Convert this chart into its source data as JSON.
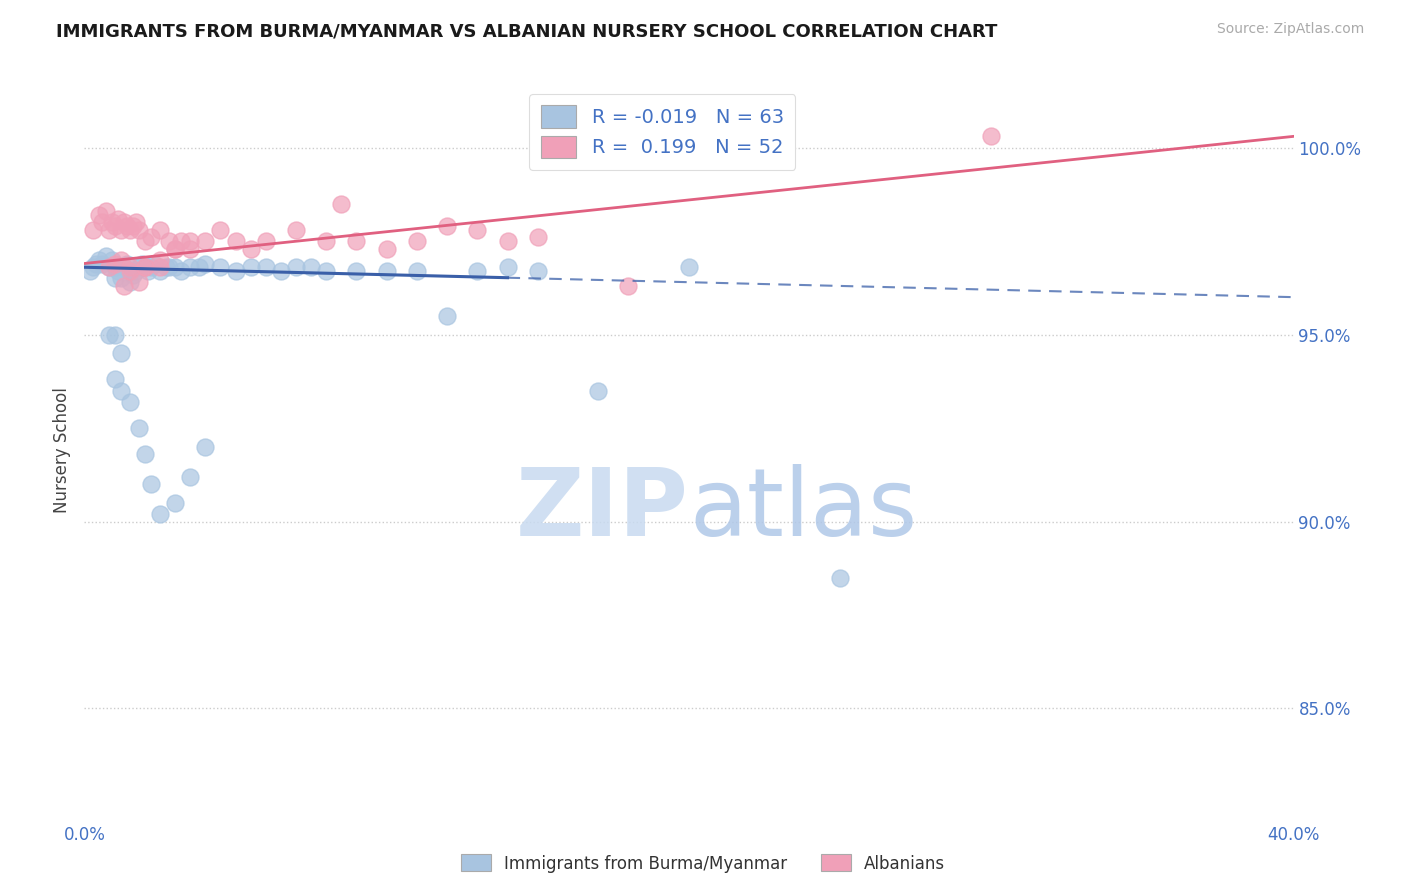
{
  "title": "IMMIGRANTS FROM BURMA/MYANMAR VS ALBANIAN NURSERY SCHOOL CORRELATION CHART",
  "source": "Source: ZipAtlas.com",
  "ylabel": "Nursery School",
  "xlim": [
    0.0,
    40.0
  ],
  "ylim": [
    82.0,
    101.8
  ],
  "yticks": [
    85.0,
    90.0,
    95.0,
    100.0
  ],
  "xticks": [
    0.0,
    5.0,
    10.0,
    15.0,
    20.0,
    25.0,
    30.0,
    35.0,
    40.0
  ],
  "blue_label": "Immigrants from Burma/Myanmar",
  "pink_label": "Albanians",
  "blue_R": -0.019,
  "blue_N": 63,
  "pink_R": 0.199,
  "pink_N": 52,
  "blue_color": "#a8c4e0",
  "pink_color": "#f0a0b8",
  "blue_line_color": "#3a5fa8",
  "pink_line_color": "#e06080",
  "background_color": "#ffffff",
  "title_color": "#1a1a1a",
  "tick_label_color": "#4472c4",
  "blue_line_intercept": 96.8,
  "blue_line_slope": -0.02,
  "pink_line_intercept": 96.9,
  "pink_line_slope": 0.085,
  "blue_solid_end": 14.0,
  "blue_scatter_x": [
    0.2,
    0.3,
    0.4,
    0.5,
    0.6,
    0.7,
    0.8,
    0.9,
    1.0,
    1.0,
    1.1,
    1.2,
    1.3,
    1.4,
    1.5,
    1.5,
    1.6,
    1.7,
    1.8,
    1.9,
    2.0,
    2.1,
    2.2,
    2.3,
    2.5,
    2.7,
    2.8,
    3.0,
    3.2,
    3.5,
    3.8,
    4.0,
    4.5,
    5.0,
    5.5,
    6.0,
    6.5,
    7.0,
    7.5,
    8.0,
    9.0,
    10.0,
    11.0,
    12.0,
    13.0,
    14.0,
    15.0,
    17.0,
    20.0,
    25.0,
    1.0,
    1.2,
    1.5,
    1.8,
    2.0,
    2.2,
    2.5,
    3.0,
    3.5,
    4.0,
    0.8,
    1.0,
    1.2
  ],
  "blue_scatter_y": [
    96.7,
    96.8,
    96.9,
    97.0,
    96.9,
    97.1,
    96.8,
    97.0,
    96.8,
    96.5,
    96.7,
    96.5,
    96.8,
    96.9,
    96.7,
    96.4,
    96.6,
    96.7,
    96.8,
    96.9,
    96.8,
    96.7,
    96.8,
    96.9,
    96.7,
    96.8,
    96.8,
    96.8,
    96.7,
    96.8,
    96.8,
    96.9,
    96.8,
    96.7,
    96.8,
    96.8,
    96.7,
    96.8,
    96.8,
    96.7,
    96.7,
    96.7,
    96.7,
    95.5,
    96.7,
    96.8,
    96.7,
    93.5,
    96.8,
    88.5,
    95.0,
    94.5,
    93.2,
    92.5,
    91.8,
    91.0,
    90.2,
    90.5,
    91.2,
    92.0,
    95.0,
    93.8,
    93.5
  ],
  "pink_scatter_x": [
    0.3,
    0.5,
    0.6,
    0.7,
    0.8,
    0.9,
    1.0,
    1.1,
    1.2,
    1.3,
    1.4,
    1.5,
    1.6,
    1.7,
    1.8,
    2.0,
    2.2,
    2.5,
    2.8,
    3.0,
    3.2,
    3.5,
    4.0,
    4.5,
    5.0,
    5.5,
    6.0,
    7.0,
    8.0,
    8.5,
    9.0,
    10.0,
    11.0,
    12.0,
    13.0,
    14.0,
    15.0,
    18.0,
    0.8,
    1.0,
    1.2,
    1.5,
    2.0,
    2.5,
    1.3,
    1.5,
    1.8,
    2.0,
    2.5,
    3.0,
    3.5,
    30.0
  ],
  "pink_scatter_y": [
    97.8,
    98.2,
    98.0,
    98.3,
    97.8,
    98.0,
    97.9,
    98.1,
    97.8,
    98.0,
    97.9,
    97.8,
    97.9,
    98.0,
    97.8,
    97.5,
    97.6,
    97.8,
    97.5,
    97.3,
    97.5,
    97.3,
    97.5,
    97.8,
    97.5,
    97.3,
    97.5,
    97.8,
    97.5,
    98.5,
    97.5,
    97.3,
    97.5,
    97.9,
    97.8,
    97.5,
    97.6,
    96.3,
    96.8,
    96.9,
    97.0,
    96.8,
    96.8,
    96.8,
    96.3,
    96.7,
    96.4,
    96.8,
    97.0,
    97.3,
    97.5,
    100.3
  ]
}
